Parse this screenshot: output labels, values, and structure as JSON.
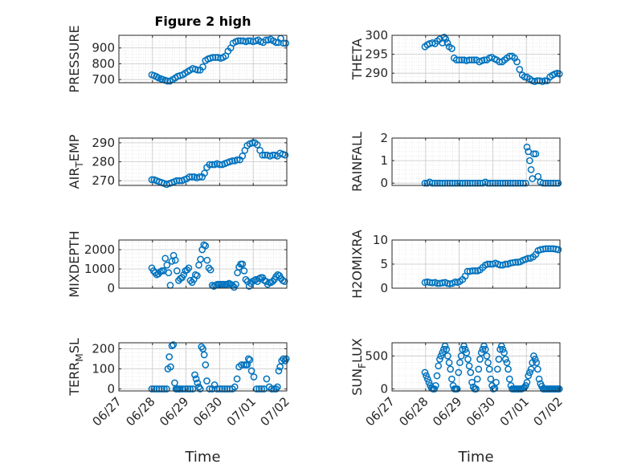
{
  "figure_title": "Figure 2 high",
  "xlabel": "Time",
  "x_tick_labels": [
    "06/27",
    "06/28",
    "06/29",
    "06/30",
    "07/01",
    "07/02"
  ],
  "x_ticks": [
    0,
    1,
    2,
    3,
    4,
    5
  ],
  "xlim": [
    0,
    5
  ],
  "colors": {
    "marker": "#0072bd",
    "axis": "#262626",
    "grid": "#c8c8c8"
  },
  "chart_data": [
    {
      "type": "scatter",
      "id": "pressure",
      "ylabel": "PRESSURE",
      "ylim": [
        680,
        980
      ],
      "yticks": [
        700,
        800,
        900
      ],
      "grid": true,
      "title": "Figure 2 high",
      "x": [
        0.98,
        1.05,
        1.12,
        1.18,
        1.25,
        1.3,
        1.38,
        1.45,
        1.52,
        1.6,
        1.68,
        1.75,
        1.82,
        1.9,
        1.97,
        2.05,
        2.12,
        2.2,
        2.28,
        2.35,
        2.42,
        2.5,
        2.58,
        2.65,
        2.72,
        2.8,
        2.88,
        2.95,
        3.03,
        3.1,
        3.18,
        3.25,
        3.33,
        3.4,
        3.48,
        3.55,
        3.62,
        3.7,
        3.78,
        3.85,
        3.92,
        4.0,
        4.08,
        4.15,
        4.22,
        4.3,
        4.38,
        4.45,
        4.52,
        4.6,
        4.68,
        4.75,
        4.82,
        4.9,
        4.97
      ],
      "y": [
        730,
        725,
        718,
        710,
        705,
        700,
        695,
        690,
        690,
        700,
        710,
        720,
        725,
        730,
        740,
        750,
        760,
        770,
        765,
        760,
        760,
        780,
        820,
        830,
        835,
        840,
        840,
        840,
        835,
        840,
        850,
        880,
        900,
        930,
        940,
        945,
        945,
        945,
        940,
        945,
        945,
        940,
        945,
        950,
        940,
        935,
        950,
        950,
        955,
        945,
        935,
        935,
        960,
        930,
        930
      ],
      "series": [
        {
          "name": "",
          "values": []
        }
      ]
    },
    {
      "type": "scatter",
      "id": "theta",
      "ylabel": "THETA",
      "ylim": [
        287.5,
        300
      ],
      "yticks": [
        290,
        295,
        300
      ],
      "grid": true,
      "x": [
        0.98,
        1.05,
        1.12,
        1.2,
        1.28,
        1.35,
        1.42,
        1.5,
        1.55,
        1.6,
        1.65,
        1.7,
        1.78,
        1.85,
        1.92,
        2.0,
        2.08,
        2.15,
        2.22,
        2.3,
        2.38,
        2.45,
        2.52,
        2.6,
        2.68,
        2.75,
        2.82,
        2.9,
        2.97,
        3.05,
        3.12,
        3.2,
        3.28,
        3.35,
        3.42,
        3.5,
        3.58,
        3.65,
        3.72,
        3.8,
        3.88,
        3.95,
        4.02,
        4.1,
        4.18,
        4.25,
        4.32,
        4.4,
        4.48,
        4.55,
        4.62,
        4.7,
        4.78,
        4.85,
        4.92,
        4.98
      ],
      "y": [
        297,
        297.5,
        297.8,
        298,
        297.8,
        298.5,
        299,
        298,
        299.5,
        299,
        298,
        297,
        296.5,
        294,
        293.5,
        293.5,
        293.5,
        293.5,
        293.3,
        293.5,
        293.5,
        293.5,
        293.5,
        293,
        293.3,
        293.5,
        293.5,
        294,
        294.2,
        293.8,
        293.5,
        293,
        293,
        293.5,
        294,
        294.5,
        294.5,
        294,
        293,
        291,
        289.5,
        289,
        289,
        288.5,
        288,
        287.8,
        288,
        288,
        287.8,
        288,
        288,
        289,
        289.5,
        289.8,
        290,
        289.8
      ],
      "series": [
        {
          "name": "",
          "values": []
        }
      ]
    },
    {
      "type": "scatter",
      "id": "air_temp",
      "ylabel": "AIR",
      "ylabel_sub": "T",
      "ylabel_tail": "EMP",
      "ylim": [
        267.5,
        292.5
      ],
      "yticks": [
        270,
        280,
        290
      ],
      "grid": true,
      "x": [
        0.98,
        1.05,
        1.12,
        1.2,
        1.28,
        1.35,
        1.42,
        1.5,
        1.58,
        1.65,
        1.72,
        1.8,
        1.88,
        1.95,
        2.02,
        2.1,
        2.18,
        2.25,
        2.32,
        2.4,
        2.48,
        2.55,
        2.62,
        2.7,
        2.78,
        2.85,
        2.92,
        3.0,
        3.08,
        3.15,
        3.22,
        3.3,
        3.38,
        3.45,
        3.52,
        3.6,
        3.68,
        3.75,
        3.82,
        3.9,
        3.98,
        4.05,
        4.12,
        4.2,
        4.28,
        4.35,
        4.42,
        4.5,
        4.58,
        4.65,
        4.72,
        4.8,
        4.88,
        4.95
      ],
      "y": [
        270.5,
        270.5,
        270,
        269.5,
        269,
        268.5,
        268,
        268.5,
        269,
        269.5,
        270,
        270,
        270,
        270.5,
        271,
        272,
        272,
        272,
        271.5,
        272,
        272,
        274,
        277,
        278.5,
        278.5,
        278.5,
        279,
        278.5,
        278.5,
        279,
        279.5,
        280,
        280.5,
        280.5,
        281,
        281,
        283,
        286,
        288.5,
        289.5,
        290,
        290,
        289,
        286,
        283.5,
        283.5,
        283.5,
        283,
        283.5,
        283.5,
        283,
        284.5,
        284,
        283.5
      ],
      "series": [
        {
          "name": "",
          "values": []
        }
      ]
    },
    {
      "type": "scatter",
      "id": "rainfall",
      "ylabel": "RAINFALL",
      "ylim": [
        -0.1,
        2
      ],
      "yticks": [
        0,
        1,
        2
      ],
      "grid": true,
      "x": [
        0.98,
        1.05,
        1.12,
        1.2,
        1.28,
        1.35,
        1.42,
        1.5,
        1.58,
        1.65,
        1.72,
        1.8,
        1.88,
        1.95,
        2.02,
        2.1,
        2.18,
        2.25,
        2.32,
        2.4,
        2.48,
        2.55,
        2.62,
        2.7,
        2.78,
        2.85,
        2.92,
        3.0,
        3.08,
        3.15,
        3.22,
        3.3,
        3.38,
        3.45,
        3.52,
        3.6,
        3.68,
        3.75,
        3.82,
        3.9,
        3.98,
        4.02,
        4.06,
        4.1,
        4.14,
        4.18,
        4.22,
        4.28,
        4.35,
        4.42,
        4.5,
        4.58,
        4.65,
        4.72,
        4.8,
        4.88,
        4.95
      ],
      "y": [
        0,
        0,
        0.05,
        0,
        0,
        0,
        0,
        0,
        0,
        0,
        0,
        0,
        0,
        0,
        0,
        0,
        0,
        0,
        0,
        0,
        0,
        0,
        0,
        0,
        0.05,
        0,
        0,
        0,
        0,
        0,
        0,
        0,
        0,
        0,
        0,
        0,
        0,
        0,
        0,
        0,
        0,
        1.6,
        1.4,
        1.0,
        0.6,
        0.2,
        1.3,
        1.3,
        0.3,
        0.05,
        0,
        0,
        0,
        0,
        0,
        0,
        0
      ],
      "series": [
        {
          "name": "",
          "values": []
        }
      ]
    },
    {
      "type": "scatter",
      "id": "mixdepth",
      "ylabel": "MIXDEPTH",
      "ylim": [
        0,
        2500
      ],
      "yticks": [
        0,
        1000,
        2000
      ],
      "grid": true,
      "x": [
        0.98,
        1.03,
        1.08,
        1.13,
        1.18,
        1.23,
        1.28,
        1.33,
        1.38,
        1.43,
        1.48,
        1.53,
        1.58,
        1.63,
        1.68,
        1.73,
        1.78,
        1.83,
        1.88,
        1.93,
        1.98,
        2.03,
        2.08,
        2.13,
        2.18,
        2.23,
        2.28,
        2.33,
        2.38,
        2.43,
        2.48,
        2.53,
        2.58,
        2.63,
        2.68,
        2.73,
        2.78,
        2.83,
        2.88,
        2.93,
        2.98,
        3.03,
        3.08,
        3.13,
        3.18,
        3.23,
        3.28,
        3.33,
        3.38,
        3.43,
        3.48,
        3.53,
        3.58,
        3.63,
        3.68,
        3.73,
        3.78,
        3.83,
        3.88,
        3.93,
        3.98,
        4.03,
        4.08,
        4.13,
        4.18,
        4.23,
        4.28,
        4.33,
        4.38,
        4.43,
        4.48,
        4.53,
        4.58,
        4.63,
        4.68,
        4.73,
        4.78,
        4.83,
        4.88,
        4.93
      ],
      "y": [
        1050,
        900,
        800,
        700,
        750,
        850,
        900,
        900,
        1550,
        1200,
        800,
        150,
        1400,
        1700,
        1450,
        900,
        400,
        500,
        550,
        700,
        900,
        950,
        1050,
        400,
        300,
        450,
        700,
        650,
        1200,
        1500,
        2000,
        2250,
        2200,
        1450,
        1050,
        950,
        150,
        100,
        150,
        200,
        200,
        200,
        200,
        200,
        200,
        200,
        250,
        200,
        150,
        50,
        200,
        800,
        1100,
        1250,
        1250,
        900,
        450,
        350,
        100,
        250,
        350,
        400,
        450,
        350,
        500,
        550,
        550,
        400,
        350,
        200,
        300,
        300,
        350,
        450,
        600,
        700,
        650,
        500,
        400,
        350
      ],
      "series": [
        {
          "name": "",
          "values": []
        }
      ]
    },
    {
      "type": "scatter",
      "id": "h2omixra",
      "ylabel": "H2OMIXRA",
      "ylim": [
        0,
        10
      ],
      "yticks": [
        0,
        5,
        10
      ],
      "grid": true,
      "x": [
        0.98,
        1.05,
        1.12,
        1.2,
        1.28,
        1.35,
        1.42,
        1.5,
        1.58,
        1.65,
        1.72,
        1.8,
        1.88,
        1.95,
        2.02,
        2.1,
        2.18,
        2.25,
        2.32,
        2.4,
        2.48,
        2.55,
        2.62,
        2.7,
        2.78,
        2.85,
        2.92,
        3.0,
        3.08,
        3.15,
        3.22,
        3.3,
        3.38,
        3.45,
        3.52,
        3.6,
        3.68,
        3.75,
        3.82,
        3.9,
        3.98,
        4.05,
        4.12,
        4.2,
        4.28,
        4.35,
        4.42,
        4.5,
        4.58,
        4.65,
        4.72,
        4.8,
        4.88,
        4.95
      ],
      "y": [
        1.2,
        1.3,
        1.2,
        1.1,
        1.2,
        1.0,
        1.0,
        1.1,
        1.2,
        1.0,
        0.9,
        1.0,
        1.3,
        1.2,
        1.4,
        1.8,
        2.5,
        3.5,
        3.5,
        3.6,
        3.6,
        3.6,
        3.8,
        4.3,
        4.8,
        5.0,
        5.0,
        5.0,
        5.2,
        5.0,
        4.8,
        4.8,
        5.0,
        5.0,
        5.2,
        5.3,
        5.4,
        5.4,
        5.5,
        5.8,
        6.0,
        6.2,
        6.2,
        6.5,
        7.0,
        7.8,
        8.0,
        8.1,
        8.2,
        8.2,
        8.2,
        8.2,
        8.1,
        8.0
      ],
      "series": [
        {
          "name": "",
          "values": []
        }
      ]
    },
    {
      "type": "scatter",
      "id": "terr_msl",
      "ylabel": "TERR",
      "ylabel_sub": "M",
      "ylabel_tail": "SL",
      "ylim": [
        -10,
        230
      ],
      "yticks": [
        0,
        100,
        200
      ],
      "grid": true,
      "x": [
        0.98,
        1.05,
        1.12,
        1.2,
        1.28,
        1.35,
        1.42,
        1.46,
        1.5,
        1.54,
        1.58,
        1.62,
        1.66,
        1.7,
        1.74,
        1.78,
        1.82,
        1.9,
        1.98,
        2.05,
        2.12,
        2.2,
        2.26,
        2.3,
        2.34,
        2.38,
        2.42,
        2.46,
        2.5,
        2.54,
        2.58,
        2.62,
        2.7,
        2.78,
        2.85,
        2.92,
        3.0,
        3.08,
        3.15,
        3.22,
        3.3,
        3.38,
        3.45,
        3.52,
        3.58,
        3.65,
        3.72,
        3.78,
        3.82,
        3.86,
        3.9,
        3.95,
        4.02,
        4.1,
        4.18,
        4.25,
        4.32,
        4.4,
        4.48,
        4.55,
        4.62,
        4.68,
        4.72,
        4.76,
        4.8,
        4.85,
        4.9,
        4.95,
        4.98
      ],
      "y": [
        0,
        0,
        0,
        0,
        0,
        0,
        0,
        100,
        160,
        110,
        215,
        220,
        30,
        0,
        0,
        0,
        0,
        0,
        0,
        0,
        0,
        0,
        70,
        50,
        30,
        10,
        0,
        210,
        200,
        170,
        120,
        40,
        0,
        0,
        20,
        0,
        0,
        0,
        0,
        0,
        0,
        0,
        10,
        50,
        110,
        120,
        120,
        120,
        120,
        150,
        145,
        90,
        60,
        0,
        0,
        0,
        0,
        50,
        10,
        0,
        0,
        0,
        10,
        90,
        110,
        140,
        150,
        140,
        150
      ],
      "series": [
        {
          "name": "",
          "values": []
        }
      ]
    },
    {
      "type": "scatter",
      "id": "sunflux",
      "ylabel": "SUN",
      "ylabel_sub": "F",
      "ylabel_tail": "LUX",
      "ylim": [
        -30,
        700
      ],
      "yticks": [
        0,
        500
      ],
      "grid": true,
      "x": [
        0.98,
        1.02,
        1.06,
        1.1,
        1.14,
        1.18,
        1.22,
        1.26,
        1.3,
        1.34,
        1.38,
        1.42,
        1.46,
        1.5,
        1.54,
        1.58,
        1.62,
        1.66,
        1.7,
        1.74,
        1.78,
        1.82,
        1.86,
        1.9,
        1.94,
        1.98,
        2.02,
        2.06,
        2.1,
        2.14,
        2.18,
        2.22,
        2.26,
        2.3,
        2.34,
        2.38,
        2.42,
        2.46,
        2.5,
        2.54,
        2.58,
        2.62,
        2.66,
        2.7,
        2.74,
        2.78,
        2.82,
        2.86,
        2.9,
        2.94,
        2.98,
        3.02,
        3.06,
        3.1,
        3.14,
        3.18,
        3.22,
        3.26,
        3.3,
        3.34,
        3.38,
        3.42,
        3.46,
        3.5,
        3.54,
        3.58,
        3.62,
        3.66,
        3.7,
        3.74,
        3.78,
        3.82,
        3.86,
        3.9,
        3.94,
        3.98,
        4.02,
        4.06,
        4.1,
        4.14,
        4.18,
        4.22,
        4.26,
        4.3,
        4.34,
        4.38,
        4.42,
        4.46,
        4.5,
        4.54,
        4.58,
        4.62,
        4.66,
        4.7,
        4.74,
        4.78,
        4.82,
        4.86,
        4.9,
        4.94,
        4.98
      ],
      "y": [
        250,
        200,
        150,
        100,
        50,
        10,
        0,
        0,
        50,
        200,
        350,
        450,
        500,
        550,
        600,
        650,
        600,
        500,
        400,
        300,
        150,
        50,
        0,
        0,
        0,
        250,
        400,
        500,
        600,
        650,
        600,
        550,
        450,
        350,
        250,
        100,
        30,
        0,
        0,
        150,
        300,
        450,
        550,
        600,
        650,
        600,
        500,
        400,
        300,
        150,
        50,
        0,
        10,
        100,
        300,
        450,
        600,
        650,
        600,
        550,
        450,
        400,
        300,
        150,
        50,
        0,
        0,
        0,
        0,
        0,
        0,
        0,
        0,
        10,
        20,
        50,
        100,
        200,
        250,
        300,
        400,
        500,
        450,
        400,
        300,
        150,
        80,
        40,
        0,
        0,
        0,
        0,
        0,
        0,
        0,
        0,
        0,
        0,
        0,
        0,
        0
      ],
      "series": [
        {
          "name": "",
          "values": []
        }
      ]
    }
  ]
}
